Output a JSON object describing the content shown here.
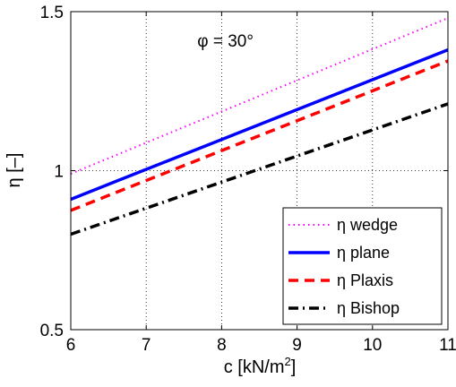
{
  "chart_data": {
    "type": "line",
    "xlabel": "c [kN/m",
    "xlabel_sup": "2",
    "xlabel_end": "]",
    "ylabel": "η [–]",
    "xlim": [
      6,
      11
    ],
    "ylim": [
      0.5,
      1.5
    ],
    "xticks": [
      6,
      7,
      8,
      9,
      10,
      11
    ],
    "yticks": [
      0.5,
      1,
      1.5
    ],
    "xtick_labels": [
      "6",
      "7",
      "8",
      "9",
      "10",
      "11"
    ],
    "ytick_labels": [
      "0.5",
      "1",
      "1.5"
    ],
    "grid": true,
    "legend_position": "bottom-right",
    "annotation": {
      "text": "φ = 30°",
      "x": 8.05,
      "y": 1.39
    },
    "series": [
      {
        "name": "η wedge",
        "color": "#ff00ff",
        "style": "dotted",
        "x": [
          6,
          11
        ],
        "y": [
          0.99,
          1.48
        ]
      },
      {
        "name": "η plane",
        "color": "#0000ff",
        "style": "solid",
        "x": [
          6,
          11
        ],
        "y": [
          0.91,
          1.38
        ]
      },
      {
        "name": "η Plaxis",
        "color": "#ff0000",
        "style": "dashed",
        "x": [
          6,
          11
        ],
        "y": [
          0.875,
          1.345
        ]
      },
      {
        "name": "η Bishop",
        "color": "#000000",
        "style": "dashdot",
        "x": [
          6,
          11
        ],
        "y": [
          0.8,
          1.21
        ]
      }
    ]
  }
}
